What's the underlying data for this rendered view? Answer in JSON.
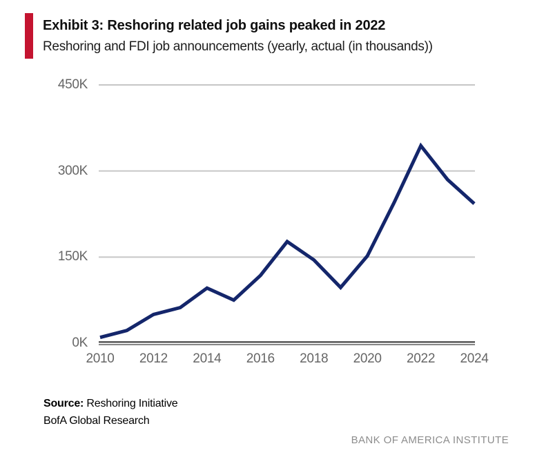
{
  "header": {
    "exhibit_title": "Exhibit 3: Reshoring related job gains peaked in 2022",
    "subtitle": "Reshoring and FDI job announcements (yearly, actual (in thousands))"
  },
  "chart_data": {
    "type": "line",
    "title": "Exhibit 3: Reshoring related job gains peaked in 2022",
    "subtitle": "Reshoring and FDI job announcements (yearly, actual (in thousands))",
    "unit": "thousands of jobs",
    "x": [
      2010,
      2011,
      2012,
      2013,
      2014,
      2015,
      2016,
      2017,
      2018,
      2019,
      2020,
      2021,
      2022,
      2023,
      2024
    ],
    "values": [
      10,
      22,
      50,
      62,
      96,
      75,
      118,
      177,
      145,
      97,
      152,
      245,
      344,
      285,
      243
    ],
    "series": [
      {
        "name": "Reshoring and FDI job announcements",
        "values": [
          10,
          22,
          50,
          62,
          96,
          75,
          118,
          177,
          145,
          97,
          152,
          245,
          344,
          285,
          243
        ]
      }
    ],
    "xlabel": "",
    "ylabel": "",
    "ylim": [
      0,
      450
    ],
    "yticks": [
      0,
      150,
      300,
      450
    ],
    "ytick_labels": [
      "0K",
      "150K",
      "300K",
      "450K"
    ],
    "xticks": [
      2010,
      2012,
      2014,
      2016,
      2018,
      2020,
      2022,
      2024
    ],
    "xtick_labels": [
      "2010",
      "2012",
      "2014",
      "2016",
      "2018",
      "2020",
      "2022",
      "2024"
    ],
    "grid": "horizontal gridlines only",
    "legend": "none",
    "line_color": "#14266B",
    "gridline_color": "#C6C6C6",
    "axis_color": "#454545"
  },
  "footer": {
    "source_label": "Source:",
    "source_text": " Reshoring Initiative",
    "source_line2": "BofA Global Research",
    "institute": "BANK OF AMERICA INSTITUTE"
  },
  "colors": {
    "accent_red": "#C41430",
    "line_navy": "#14266B",
    "tick_gray": "#666666",
    "institute_gray": "#8D8D8D"
  }
}
